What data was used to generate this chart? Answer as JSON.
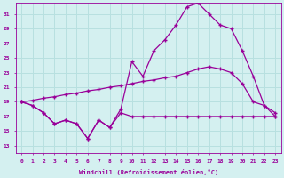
{
  "bg_color": "#d4f0f0",
  "line_color": "#990099",
  "grid_color": "#b8e0e0",
  "xlabel": "Windchill (Refroidissement éolien,°C)",
  "ylabel_ticks": [
    13,
    15,
    17,
    19,
    21,
    23,
    25,
    27,
    29,
    31
  ],
  "xlabel_ticks": [
    0,
    1,
    2,
    3,
    4,
    5,
    6,
    7,
    8,
    9,
    10,
    11,
    12,
    13,
    14,
    15,
    16,
    17,
    18,
    19,
    20,
    21,
    22,
    23
  ],
  "xlim": [
    -0.5,
    23.5
  ],
  "ylim": [
    12.0,
    32.5
  ],
  "line1_x": [
    0,
    1,
    2,
    3,
    4,
    5,
    6,
    7,
    8,
    9,
    10,
    11,
    12,
    13,
    14,
    15,
    16,
    17,
    18,
    19,
    20,
    21,
    22,
    23
  ],
  "line1_y": [
    19.0,
    18.5,
    17.5,
    16.0,
    16.5,
    16.0,
    14.0,
    16.5,
    15.5,
    17.5,
    17.0,
    17.0,
    17.0,
    17.0,
    17.0,
    17.0,
    17.0,
    17.0,
    17.0,
    17.0,
    17.0,
    17.0,
    17.0,
    17.0
  ],
  "line2_x": [
    0,
    1,
    2,
    3,
    4,
    5,
    6,
    7,
    8,
    9,
    10,
    11,
    12,
    13,
    14,
    15,
    16,
    17,
    18,
    19,
    20,
    21,
    22,
    23
  ],
  "line2_y": [
    19.0,
    19.2,
    19.5,
    19.7,
    20.0,
    20.2,
    20.5,
    20.7,
    21.0,
    21.2,
    21.5,
    21.8,
    22.0,
    22.3,
    22.5,
    23.0,
    23.5,
    23.8,
    23.5,
    23.0,
    21.5,
    19.0,
    18.5,
    17.5
  ],
  "line3_x": [
    0,
    1,
    2,
    3,
    4,
    5,
    6,
    7,
    8,
    9,
    10,
    11,
    12,
    13,
    14,
    15,
    16,
    17,
    18,
    19,
    20,
    21,
    22,
    23
  ],
  "line3_y": [
    19.0,
    18.5,
    17.5,
    16.0,
    16.5,
    16.0,
    14.0,
    16.5,
    15.5,
    18.0,
    24.5,
    22.5,
    26.0,
    27.5,
    29.5,
    32.0,
    32.5,
    31.0,
    29.5,
    29.0,
    26.0,
    22.5,
    18.5,
    17.0
  ]
}
